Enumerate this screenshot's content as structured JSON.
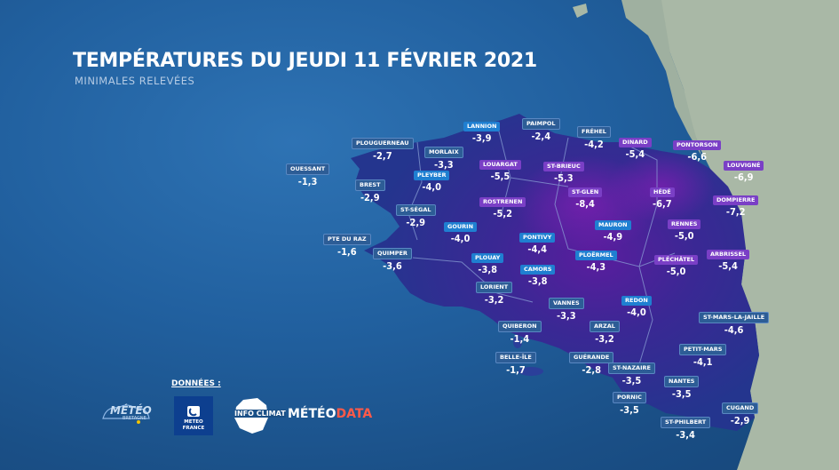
{
  "header": {
    "title": "TEMPÉRATURES DU JEUDI 11 FÉVRIER 2021",
    "subtitle": "MINIMALES RELEVÉES"
  },
  "colors": {
    "blue_label": "#1f7fd1",
    "navy_label": "#2d5d96",
    "purple_label": "#7a3fc6",
    "sea": "#21609f",
    "land": "#a9b8a6"
  },
  "stations": [
    {
      "name": "LANNION",
      "value": "-3,9",
      "color": "blue"
    },
    {
      "name": "PAIMPOL",
      "value": "-2,4",
      "color": "navy"
    },
    {
      "name": "FRÉHEL",
      "value": "-4,2",
      "color": "navy"
    },
    {
      "name": "PLOUGUERNEAU",
      "value": "-2,7",
      "color": "navy"
    },
    {
      "name": "MORLAIX",
      "value": "-3,3",
      "color": "navy"
    },
    {
      "name": "DINARD",
      "value": "-5,4",
      "color": "purple"
    },
    {
      "name": "PONTORSON",
      "value": "-6,6",
      "color": "purple"
    },
    {
      "name": "OUESSANT",
      "value": "-1,3",
      "color": "navy"
    },
    {
      "name": "LOUARGAT",
      "value": "-5,5",
      "color": "purple"
    },
    {
      "name": "ST-BRIEUC",
      "value": "-5,3",
      "color": "purple"
    },
    {
      "name": "LOUVIGNÉ",
      "value": "-6,9",
      "color": "purple"
    },
    {
      "name": "PLEYBER",
      "value": "-4,0",
      "color": "blue"
    },
    {
      "name": "BREST",
      "value": "-2,9",
      "color": "navy"
    },
    {
      "name": "ST-GLEN",
      "value": "-8,4",
      "color": "purple"
    },
    {
      "name": "HÉDÉ",
      "value": "-6,7",
      "color": "purple"
    },
    {
      "name": "DOMPIERRE",
      "value": "-7,2",
      "color": "purple"
    },
    {
      "name": "ST-SÉGAL",
      "value": "-2,9",
      "color": "navy"
    },
    {
      "name": "ROSTRENEN",
      "value": "-5,2",
      "color": "purple"
    },
    {
      "name": "GOURIN",
      "value": "-4,0",
      "color": "blue"
    },
    {
      "name": "MAURON",
      "value": "-4,9",
      "color": "blue"
    },
    {
      "name": "RENNES",
      "value": "-5,0",
      "color": "purple"
    },
    {
      "name": "PTE DU RAZ",
      "value": "-1,6",
      "color": "navy"
    },
    {
      "name": "PONTIVY",
      "value": "-4,4",
      "color": "blue"
    },
    {
      "name": "QUIMPER",
      "value": "-3,6",
      "color": "navy"
    },
    {
      "name": "PLOUAY",
      "value": "-3,8",
      "color": "blue"
    },
    {
      "name": "PLOËRMEL",
      "value": "-4,3",
      "color": "blue"
    },
    {
      "name": "PLÉCHÂTEL",
      "value": "-5,0",
      "color": "purple"
    },
    {
      "name": "ARBRISSEL",
      "value": "-5,4",
      "color": "purple"
    },
    {
      "name": "CAMORS",
      "value": "-3,8",
      "color": "blue"
    },
    {
      "name": "LORIENT",
      "value": "-3,2",
      "color": "navy"
    },
    {
      "name": "VANNES",
      "value": "-3,3",
      "color": "navy"
    },
    {
      "name": "REDON",
      "value": "-4,0",
      "color": "blue"
    },
    {
      "name": "ST-MARS-LA-JAILLE",
      "value": "-4,6",
      "color": "navy"
    },
    {
      "name": "QUIBERON",
      "value": "-1,4",
      "color": "navy"
    },
    {
      "name": "ARZAL",
      "value": "-3,2",
      "color": "navy"
    },
    {
      "name": "PETIT-MARS",
      "value": "-4,1",
      "color": "navy"
    },
    {
      "name": "BELLE-ÎLE",
      "value": "-1,7",
      "color": "navy"
    },
    {
      "name": "GUÉRANDE",
      "value": "-2,8",
      "color": "navy"
    },
    {
      "name": "ST-NAZAIRE",
      "value": "-3,5",
      "color": "navy"
    },
    {
      "name": "NANTES",
      "value": "-3,5",
      "color": "navy"
    },
    {
      "name": "PORNIC",
      "value": "-3,5",
      "color": "navy"
    },
    {
      "name": "CUGAND",
      "value": "-2,9",
      "color": "navy"
    },
    {
      "name": "ST-PHILBERT",
      "value": "-3,4",
      "color": "navy"
    }
  ],
  "sources": {
    "label": "DONNÉES :",
    "meteo_bretagne": "MÉTÉO",
    "meteo_bretagne_sub": "BRETAGNE",
    "meteo_france_line1": "METEO",
    "meteo_france_line2": "FRANCE",
    "infoclimat": "INFO CLIMAT",
    "meteodata_a": "MÉTÉO",
    "meteodata_b": "DATA"
  }
}
